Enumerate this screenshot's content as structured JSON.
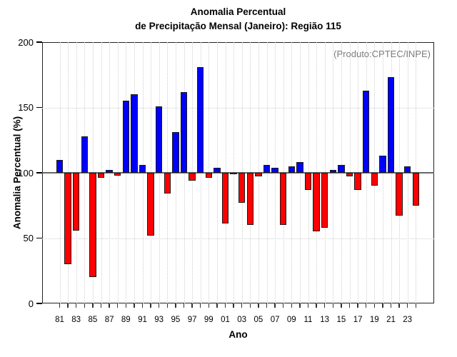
{
  "title": {
    "line1": "Anomalia Percentual",
    "line2": "de Precipitação Mensal (Janeiro): Região 115"
  },
  "chart_data": {
    "type": "bar",
    "title": "Anomalia Percentual de Precipitação Mensal (Janeiro): Região 115",
    "xlabel": "Ano",
    "ylabel": "Anomalia Percentual (%)",
    "annotation": "(Produto:CPTEC/INPE)",
    "ylim": [
      0,
      200
    ],
    "yticks": [
      0,
      50,
      100,
      150,
      200
    ],
    "baseline": 100,
    "grid": "dotted",
    "legend": "none",
    "colors": {
      "above_baseline": "#0000ff",
      "below_baseline": "#ff0000",
      "baseline_line": "#666666"
    },
    "categories": [
      "81",
      "82",
      "83",
      "84",
      "85",
      "86",
      "87",
      "88",
      "89",
      "90",
      "91",
      "92",
      "93",
      "94",
      "95",
      "96",
      "97",
      "98",
      "99",
      "00",
      "01",
      "02",
      "03",
      "04",
      "05",
      "06",
      "07",
      "08",
      "09",
      "10",
      "11",
      "12",
      "13",
      "14",
      "15",
      "16",
      "17",
      "18",
      "19",
      "20",
      "21",
      "22",
      "23",
      "24"
    ],
    "x_tick_labels": [
      "81",
      "83",
      "85",
      "87",
      "89",
      "91",
      "93",
      "95",
      "97",
      "99",
      "01",
      "03",
      "05",
      "07",
      "09",
      "11",
      "13",
      "15",
      "17",
      "19",
      "21",
      "23"
    ],
    "values": [
      110,
      30,
      56,
      128,
      20,
      96,
      102,
      98,
      155,
      160,
      106,
      52,
      151,
      84,
      131,
      162,
      94,
      181,
      96,
      104,
      61,
      100,
      77,
      60,
      97,
      106,
      104,
      60,
      105,
      108,
      87,
      55,
      58,
      102,
      106,
      97,
      87,
      163,
      90,
      113,
      173,
      67,
      105,
      75
    ]
  }
}
